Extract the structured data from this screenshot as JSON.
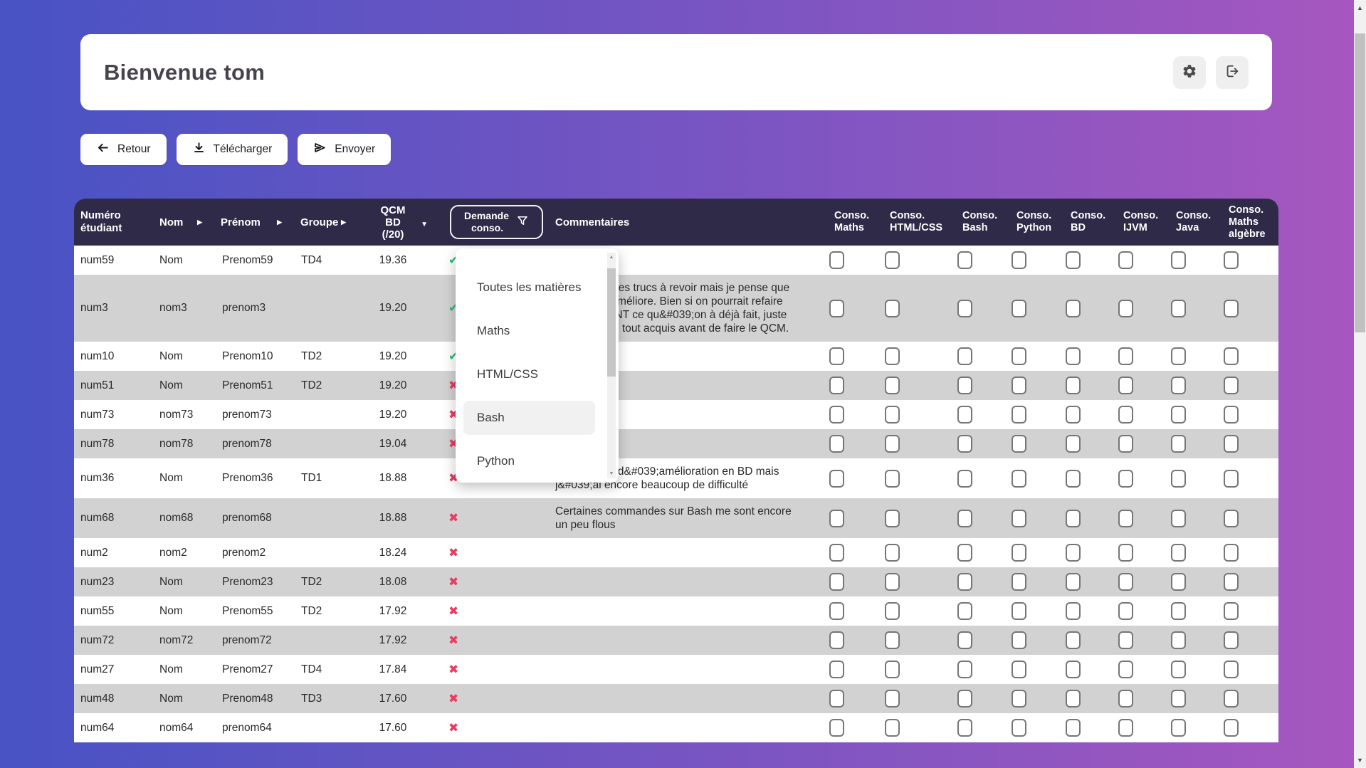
{
  "window": {
    "background_gradient": [
      "#4853c4",
      "#a757bf"
    ]
  },
  "header_card": {
    "title": "Bienvenue tom"
  },
  "toolbar": {
    "back": "Retour",
    "download": "Télécharger",
    "send": "Envoyer"
  },
  "table": {
    "header": {
      "numero": "Numéro étudiant",
      "nom": "Nom",
      "prenom": "Prénom",
      "groupe": "Groupe",
      "qcm": [
        "QCM",
        "BD",
        "(/20)"
      ],
      "demande": [
        "Demande",
        "conso."
      ],
      "commentaires": "Commentaires",
      "conso_columns": [
        [
          "Conso.",
          "Maths"
        ],
        [
          "Conso.",
          "HTML/CSS"
        ],
        [
          "Conso.",
          "Bash"
        ],
        [
          "Conso.",
          "Python"
        ],
        [
          "Conso.",
          "BD"
        ],
        [
          "Conso.",
          "IJVM"
        ],
        [
          "Conso.",
          "Java"
        ],
        [
          "Conso.",
          "Maths",
          "algèbre"
        ]
      ]
    },
    "rows": [
      {
        "numero": "num59",
        "nom": "Nom",
        "prenom": "Prenom59",
        "groupe": "TD4",
        "qcm": "19.36",
        "demande": true,
        "commentaire": ""
      },
      {
        "numero": "num3",
        "nom": "nom3",
        "prenom": "prenom3",
        "groupe": "",
        "qcm": "19.20",
        "demande": true,
        "commentaire": "Le bash ya des trucs à revoir mais je pense que je m&#039;améliore. Bien si on pourrait refaire UNIQUEMENT ce qu&#039;on à déjà fait, juste pour revoir si tout acquis avant de faire le QCM."
      },
      {
        "numero": "num10",
        "nom": "Nom",
        "prenom": "Prenom10",
        "groupe": "TD2",
        "qcm": "19.20",
        "demande": true,
        "commentaire": ""
      },
      {
        "numero": "num51",
        "nom": "Nom",
        "prenom": "Prenom51",
        "groupe": "TD2",
        "qcm": "19.20",
        "demande": false,
        "commentaire": ""
      },
      {
        "numero": "num73",
        "nom": "nom73",
        "prenom": "prenom73",
        "groupe": "",
        "qcm": "19.20",
        "demande": false,
        "commentaire": ""
      },
      {
        "numero": "num78",
        "nom": "nom78",
        "prenom": "prenom78",
        "groupe": "",
        "qcm": "19.04",
        "demande": false,
        "commentaire": ""
      },
      {
        "numero": "num36",
        "nom": "Nom",
        "prenom": "Prenom36",
        "groupe": "TD1",
        "qcm": "18.88",
        "demande": false,
        "commentaire": "Un petit peu d&#039;amélioration en BD mais j&#039;ai encore beaucoup de difficulté"
      },
      {
        "numero": "num68",
        "nom": "nom68",
        "prenom": "prenom68",
        "groupe": "",
        "qcm": "18.88",
        "demande": false,
        "commentaire": "Certaines commandes sur Bash me sont encore un peu flous"
      },
      {
        "numero": "num2",
        "nom": "nom2",
        "prenom": "prenom2",
        "groupe": "",
        "qcm": "18.24",
        "demande": false,
        "commentaire": ""
      },
      {
        "numero": "num23",
        "nom": "Nom",
        "prenom": "Prenom23",
        "groupe": "TD2",
        "qcm": "18.08",
        "demande": false,
        "commentaire": ""
      },
      {
        "numero": "num55",
        "nom": "Nom",
        "prenom": "Prenom55",
        "groupe": "TD2",
        "qcm": "17.92",
        "demande": false,
        "commentaire": ""
      },
      {
        "numero": "num72",
        "nom": "nom72",
        "prenom": "prenom72",
        "groupe": "",
        "qcm": "17.92",
        "demande": false,
        "commentaire": ""
      },
      {
        "numero": "num27",
        "nom": "Nom",
        "prenom": "Prenom27",
        "groupe": "TD4",
        "qcm": "17.84",
        "demande": false,
        "commentaire": ""
      },
      {
        "numero": "num48",
        "nom": "Nom",
        "prenom": "Prenom48",
        "groupe": "TD3",
        "qcm": "17.60",
        "demande": false,
        "commentaire": ""
      },
      {
        "numero": "num64",
        "nom": "nom64",
        "prenom": "prenom64",
        "groupe": "",
        "qcm": "17.60",
        "demande": false,
        "commentaire": ""
      }
    ]
  },
  "filter_dropdown": {
    "items": [
      {
        "label": "Toutes les matières",
        "highlighted": false
      },
      {
        "label": "Maths",
        "highlighted": false
      },
      {
        "label": "HTML/CSS",
        "highlighted": false
      },
      {
        "label": "Bash",
        "highlighted": true
      },
      {
        "label": "Python",
        "highlighted": false
      }
    ]
  },
  "status": {
    "check_glyph": "✔",
    "cross_glyph": "✖",
    "check_color": "#27bd70",
    "cross_color": "#ed3a5f",
    "table_header_bg": "#2f2a48",
    "row_alt_bg": "#d2d2d2"
  }
}
